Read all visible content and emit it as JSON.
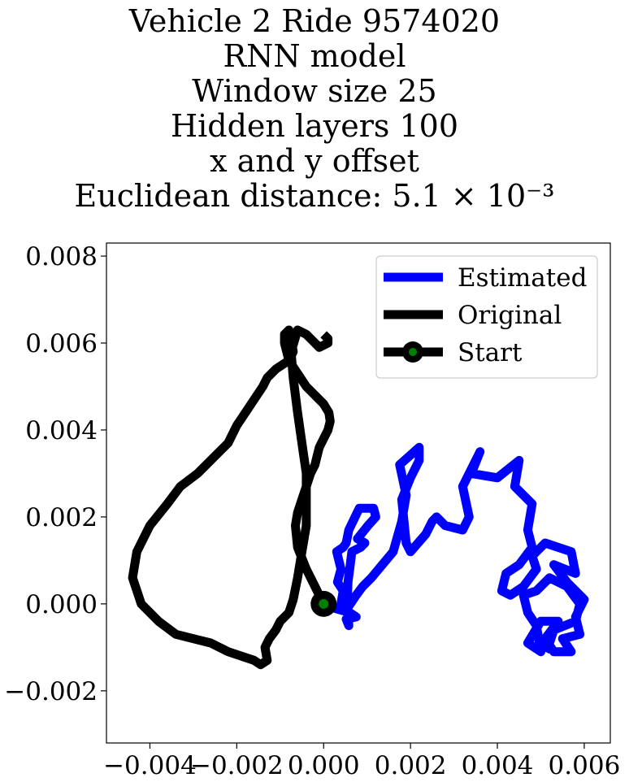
{
  "chart_data": {
    "type": "line",
    "title_lines": [
      "Vehicle 2 Ride 9574020",
      "RNN model",
      "Window size 25",
      "Hidden layers 100",
      "x and y offset",
      "Euclidean distance: 5.1 × 10⁻³"
    ],
    "xlabel": "",
    "ylabel": "",
    "xlim": [
      -0.005,
      0.0066
    ],
    "ylim": [
      -0.0032,
      0.0083
    ],
    "xticks": [
      -0.004,
      -0.002,
      0.0,
      0.002,
      0.004,
      0.006
    ],
    "xtick_labels": [
      "−0.004",
      "−0.002",
      "0.000",
      "0.002",
      "0.004",
      "0.006"
    ],
    "yticks": [
      -0.002,
      0.0,
      0.002,
      0.004,
      0.006,
      0.008
    ],
    "ytick_labels": [
      "−0.002",
      "0.000",
      "0.002",
      "0.004",
      "0.006",
      "0.008"
    ],
    "grid": false,
    "legend_position": "top-right",
    "legend": [
      "Estimated",
      "Original",
      "Start"
    ],
    "series": [
      {
        "name": "Estimated",
        "color": "#0000ff",
        "x": [
          0.0,
          0.00025,
          0.0006,
          0.00075,
          0.00052,
          0.00058,
          0.00055,
          0.00056,
          0.0006,
          0.00065,
          0.00085,
          0.00095,
          0.00078,
          0.00102,
          0.0012,
          0.00115,
          0.00082,
          0.00058,
          0.00052,
          0.00045,
          0.0003,
          0.0004,
          0.00032,
          0.00045,
          0.0004,
          0.00055,
          0.00075,
          0.0009,
          0.0011,
          0.0016,
          0.0018,
          0.0019,
          0.00175,
          0.0022,
          0.0022,
          0.002,
          0.0018,
          0.00185,
          0.0019,
          0.002,
          0.00235,
          0.0025,
          0.0026,
          0.0028,
          0.0032,
          0.00335,
          0.0032,
          0.0035,
          0.0036,
          0.0034,
          0.004,
          0.0045,
          0.0044,
          0.0048,
          0.0047,
          0.0048,
          0.0045,
          0.0042,
          0.0041,
          0.0043,
          0.0046,
          0.0049,
          0.0048,
          0.0051,
          0.0057,
          0.0058,
          0.0053,
          0.0056,
          0.006,
          0.0058,
          0.0059,
          0.0055,
          0.0057,
          0.0053,
          0.0051,
          0.0054,
          0.005,
          0.0047,
          0.005,
          0.0049,
          0.0047,
          0.0046,
          0.0049,
          0.0052,
          0.0056,
          0.0059,
          0.0058,
          0.0053,
          0.0052,
          0.0051
        ],
        "y": [
          0.0,
          -0.0001,
          -0.0002,
          -0.0003,
          -0.00035,
          -0.0005,
          0.0002,
          0.0005,
          0.0008,
          0.0012,
          0.0013,
          0.0014,
          0.0015,
          0.0018,
          0.002,
          0.0022,
          0.0022,
          0.0017,
          0.0014,
          0.0013,
          0.0012,
          0.0008,
          0.0005,
          0.0003,
          0.0,
          -0.0001,
          0.0002,
          0.0004,
          0.0006,
          0.0012,
          0.0019,
          0.0025,
          0.0032,
          0.0036,
          0.0033,
          0.0029,
          0.0024,
          0.0019,
          0.0014,
          0.0012,
          0.0016,
          0.0019,
          0.002,
          0.0018,
          0.0017,
          0.002,
          0.0027,
          0.0033,
          0.0035,
          0.003,
          0.0029,
          0.0033,
          0.0027,
          0.0023,
          0.0017,
          0.0013,
          0.0009,
          0.0007,
          0.0003,
          0.0002,
          0.0004,
          0.0008,
          0.0011,
          0.0014,
          0.0012,
          0.0007,
          0.0009,
          0.0005,
          0.0001,
          -0.0003,
          -0.0007,
          -0.0008,
          -0.0011,
          -0.0011,
          -0.0008,
          -0.0004,
          -0.0004,
          -0.0009,
          -0.0011,
          -0.0005,
          -0.0002,
          0.0002,
          0.0003,
          0.0006,
          0.0004,
          0.0,
          -0.0004,
          -0.0006,
          -0.0009,
          -0.0011
        ]
      },
      {
        "name": "Original",
        "color": "#000000",
        "x": [
          0.0,
          -0.0002,
          -0.0004,
          -0.0006,
          -0.00065,
          -0.0006,
          -0.0005,
          -0.0004,
          -0.0003,
          -0.0002,
          -0.00015,
          -0.0001,
          0.0,
          0.0001,
          0.00015,
          0.00012,
          0.0,
          -0.0002,
          -0.0004,
          -0.0006,
          -0.0008,
          -0.0009,
          -0.0009,
          -0.0008,
          -0.00075,
          -0.0007,
          -0.0008,
          -0.0011,
          -0.0013,
          -0.0014,
          -0.0016,
          -0.0018,
          -0.002,
          -0.0022,
          -0.0025,
          -0.0029,
          -0.0033,
          -0.0036,
          -0.004,
          -0.0043,
          -0.0044,
          -0.0042,
          -0.0038,
          -0.0034,
          -0.003,
          -0.0026,
          -0.0022,
          -0.0016,
          -0.00145,
          -0.0013,
          -0.00135,
          -0.00125,
          -0.0011,
          -0.001,
          -0.0008,
          -0.0007,
          -0.0006,
          -0.0005,
          -0.0004,
          -0.0004,
          -0.0004,
          -0.0005,
          -0.0006,
          -0.0007,
          -0.00075,
          -0.0006,
          -0.0004,
          -0.0002,
          -0.0001,
          0.0001,
          0.0001,
          0.0
        ],
        "y": [
          0.0,
          0.0004,
          0.0008,
          0.0013,
          0.0018,
          0.0021,
          0.0024,
          0.0027,
          0.003,
          0.0032,
          0.0034,
          0.0036,
          0.0038,
          0.004,
          0.0042,
          0.0044,
          0.0046,
          0.0048,
          0.005,
          0.0053,
          0.0056,
          0.006,
          0.0062,
          0.0063,
          0.0061,
          0.0058,
          0.0056,
          0.0054,
          0.0052,
          0.005,
          0.0047,
          0.0044,
          0.0041,
          0.0037,
          0.0034,
          0.003,
          0.0027,
          0.0023,
          0.0018,
          0.0012,
          0.0006,
          0.0,
          -0.0004,
          -0.0007,
          -0.0008,
          -0.0009,
          -0.0011,
          -0.0013,
          -0.0014,
          -0.0013,
          -0.001,
          -0.0008,
          -0.0006,
          -0.0004,
          -0.0002,
          0.0001,
          0.0006,
          0.0012,
          0.0018,
          0.0024,
          0.003,
          0.0037,
          0.0044,
          0.0052,
          0.0058,
          0.0063,
          0.0062,
          0.006,
          0.0059,
          0.006,
          0.0061,
          0.0062
        ]
      },
      {
        "name": "Start",
        "color": "#000000",
        "marker_fill": "#008000",
        "x": [
          0.0
        ],
        "y": [
          0.0
        ]
      }
    ]
  }
}
